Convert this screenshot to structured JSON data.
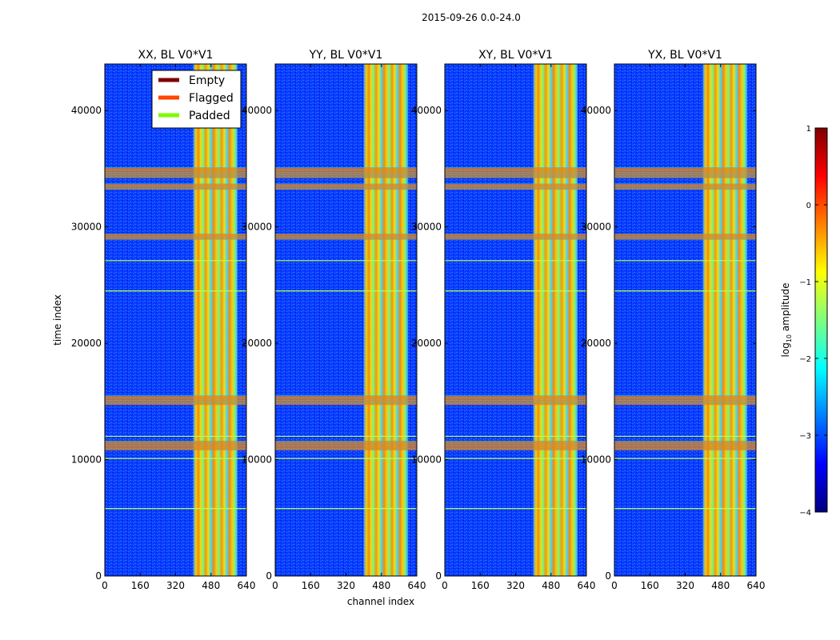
{
  "figure": {
    "suptitle": "2015-09-26 0.0-24.0",
    "xlabel": "channel index",
    "ylabel": "time index"
  },
  "legend": {
    "location": "upper-left of first panel",
    "entries": [
      {
        "label": "Empty",
        "color": "#800000"
      },
      {
        "label": "Flagged",
        "color": "#ff4500"
      },
      {
        "label": "Padded",
        "color": "#7cfc00"
      }
    ]
  },
  "colorbar": {
    "label_prefix": "log",
    "label_sub": "10",
    "label_suffix": " amplitude",
    "min": -4,
    "max": 1,
    "ticks": [
      -4,
      -3,
      -2,
      -1,
      0,
      1
    ],
    "tick_labels": [
      "−4",
      "−3",
      "−2",
      "−1",
      "0",
      "1"
    ],
    "colormap": "jet",
    "colors": [
      "#00007f",
      "#0000ff",
      "#007fff",
      "#00ffff",
      "#7fff7f",
      "#ffff00",
      "#ff7f00",
      "#ff0000",
      "#7f0000"
    ]
  },
  "chart_data": {
    "type": "heatmap",
    "title": "2015-09-26 0.0-24.0",
    "xlabel": "channel index",
    "ylabel": "time index",
    "xlim": [
      0,
      640
    ],
    "ylim": [
      0,
      44000
    ],
    "xticks": [
      0,
      160,
      320,
      480,
      640
    ],
    "yticks": [
      0,
      10000,
      20000,
      30000,
      40000
    ],
    "yticklabels": [
      "0",
      "10000",
      "20000",
      "30000",
      "40000"
    ],
    "panels": [
      {
        "title": "XX, BL V0*V1",
        "band_channels": [
          400,
          600
        ],
        "show_ytick_labels": true
      },
      {
        "title": "YY, BL V0*V1",
        "band_channels": [
          400,
          600
        ],
        "show_ytick_labels": true
      },
      {
        "title": "XY, BL V0*V1",
        "band_channels": [
          400,
          600
        ],
        "show_ytick_labels": true
      },
      {
        "title": "YX, BL V0*V1",
        "band_channels": [
          400,
          600
        ],
        "show_ytick_labels": true
      }
    ],
    "flagged_time_ranges": [
      [
        10800,
        11600
      ],
      [
        14700,
        15500
      ],
      [
        28900,
        29400
      ],
      [
        34200,
        35100
      ],
      [
        33200,
        33700
      ]
    ],
    "padded_time_rows": [
      5800,
      10100,
      12000,
      24500,
      27100
    ],
    "colorbar_range": [
      -4,
      1
    ]
  }
}
